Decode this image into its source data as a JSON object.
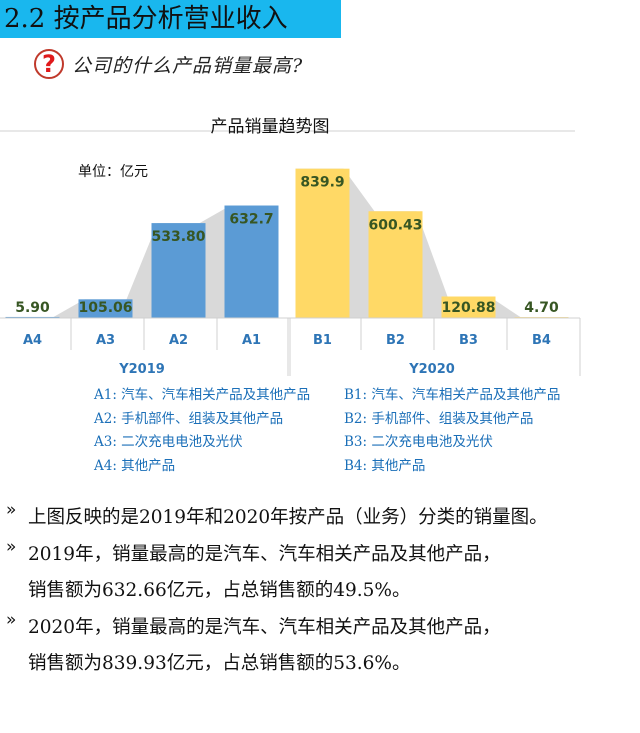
{
  "header": {
    "title": "2.2 按产品分析营业收入"
  },
  "question": {
    "icon": "question-mark-icon",
    "mark": "?",
    "text": "公司的什么产品销量最高?"
  },
  "colors": {
    "banner": "#19b7ee",
    "blue_bar": "#5b9bd5",
    "yellow_bar": "#ffd966",
    "trend_fill": "#d9d9d9",
    "legend_text": "#1b6fb8",
    "label_text": "#375623"
  },
  "chart_data": {
    "type": "bar",
    "title": "产品销量趋势图",
    "unit_label": "单位：亿元",
    "groups": [
      {
        "name": "Y2019",
        "color": "#5b9bd5",
        "categories": [
          "A4",
          "A3",
          "A2",
          "A1"
        ],
        "values": [
          5.9,
          105.06,
          533.8,
          632.7
        ],
        "value_labels": [
          "5.90",
          "105.06",
          "533.80",
          "632.7"
        ]
      },
      {
        "name": "Y2020",
        "color": "#ffd966",
        "categories": [
          "B1",
          "B2",
          "B3",
          "B4"
        ],
        "values": [
          839.9,
          600.43,
          120.88,
          4.7
        ],
        "value_labels": [
          "839.9",
          "600.43",
          "120.88",
          "4.70"
        ]
      }
    ],
    "ylim": [
      0,
      900
    ],
    "grid": false,
    "background_area": true
  },
  "legend": {
    "left": [
      "A1: 汽车、汽车相关产品及其他产品",
      "A2: 手机部件、组装及其他产品",
      "A3: 二次充电电池及光伏",
      "A4: 其他产品"
    ],
    "right": [
      "B1: 汽车、汽车相关产品及其他产品",
      "B2: 手机部件、组装及其他产品",
      "B3: 二次充电电池及光伏",
      "B4: 其他产品"
    ]
  },
  "bullets": {
    "mark": "»",
    "b1": "上图反映的是2019年和2020年按产品（业务）分类的销量图。",
    "b2_line1": "2019年，销量最高的是汽车、汽车相关产品及其他产品，",
    "b2_line2": "销售额为632.66亿元，占总销售额的49.5%。",
    "b3_line1": "2020年，销量最高的是汽车、汽车相关产品及其他产品，",
    "b3_line2": "销售额为839.93亿元，占总销售额的53.6%。"
  }
}
